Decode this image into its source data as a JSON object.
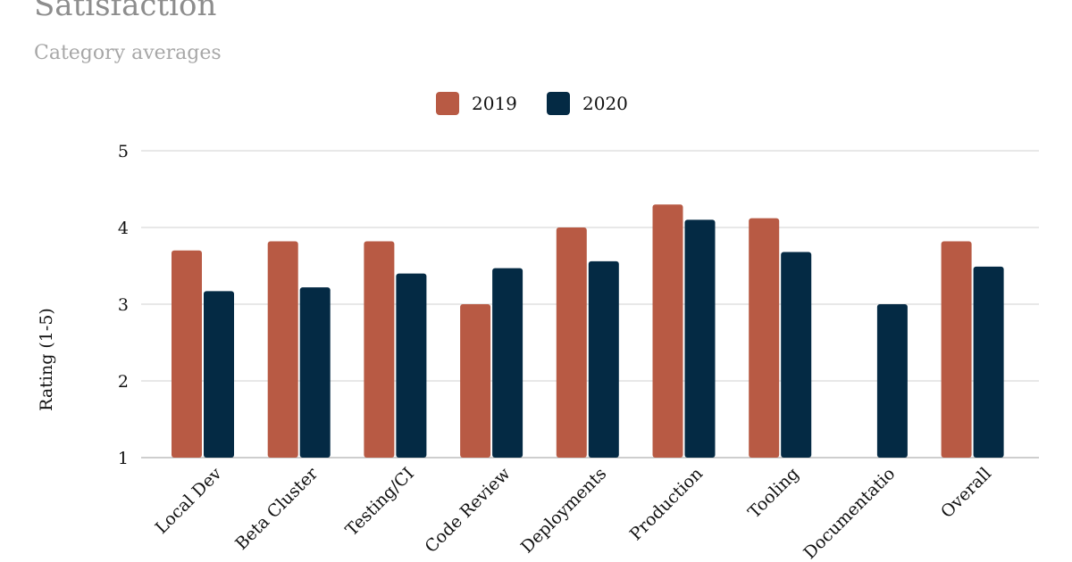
{
  "chart_data": {
    "type": "bar",
    "title": "Satisfaction",
    "subtitle": "Category averages",
    "xlabel": "",
    "ylabel": "Rating (1-5)",
    "ylim": [
      1,
      5
    ],
    "yticks": [
      1,
      2,
      3,
      4,
      5
    ],
    "grid": true,
    "legend_position": "top-center",
    "categories": [
      "Local Dev",
      "Beta Cluster",
      "Testing/CI",
      "Code Review",
      "Deployments",
      "Production",
      "Tooling",
      "Documentatio",
      "Overall"
    ],
    "series": [
      {
        "name": "2019",
        "color": "#b85a44",
        "values": [
          3.7,
          3.82,
          3.82,
          3.0,
          4.0,
          4.3,
          4.12,
          null,
          3.82
        ]
      },
      {
        "name": "2020",
        "color": "#042a44",
        "values": [
          3.17,
          3.22,
          3.4,
          3.47,
          3.56,
          4.1,
          3.68,
          3.0,
          3.49
        ]
      }
    ]
  }
}
